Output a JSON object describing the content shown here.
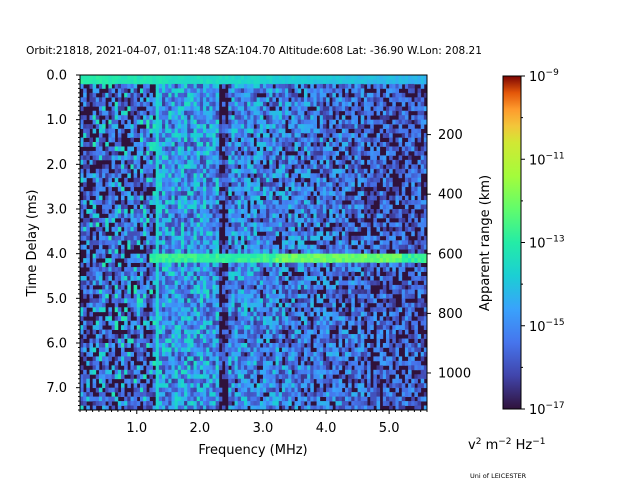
{
  "chart_data": {
    "type": "heatmap",
    "title": "Orbit:21818, 2021-04-07, 01:11:48 SZA:104.70 Altitude:608 Lat: -36.90 W.Lon: 208.21",
    "xlabel": "Frequency (MHz)",
    "ylabel": "Time Delay (ms)",
    "y2label": "Apparent range (km)",
    "xlim": [
      0.1,
      5.6
    ],
    "ylim": [
      7.5,
      0.0
    ],
    "x_ticks": [
      "1.0",
      "2.0",
      "3.0",
      "4.0",
      "5.0"
    ],
    "y_ticks": [
      "0.0",
      "1.0",
      "2.0",
      "3.0",
      "4.0",
      "5.0",
      "6.0",
      "7.0"
    ],
    "y2_ticks": [
      "200",
      "400",
      "600",
      "800",
      "1000"
    ],
    "colorbar": {
      "label_base": "v",
      "label_rest": " m",
      "label_mid": " Hz",
      "label_exp1": "2",
      "label_exp2": "−2",
      "label_exp3": "−1",
      "scale": "log",
      "vmin_exp": -17,
      "vmax_exp": -9,
      "tick_base": "10",
      "tick_exps": [
        "−9",
        "−11",
        "−13",
        "−15",
        "−17"
      ],
      "colormap": "turbo"
    },
    "features": {
      "strong_echo_delay_ms": 4.1,
      "echo_start_freq_mhz": 1.2,
      "vertical_lines_mhz": [
        1.33,
        2.35,
        2.42
      ]
    }
  },
  "credit": "Uni of LEICESTER"
}
